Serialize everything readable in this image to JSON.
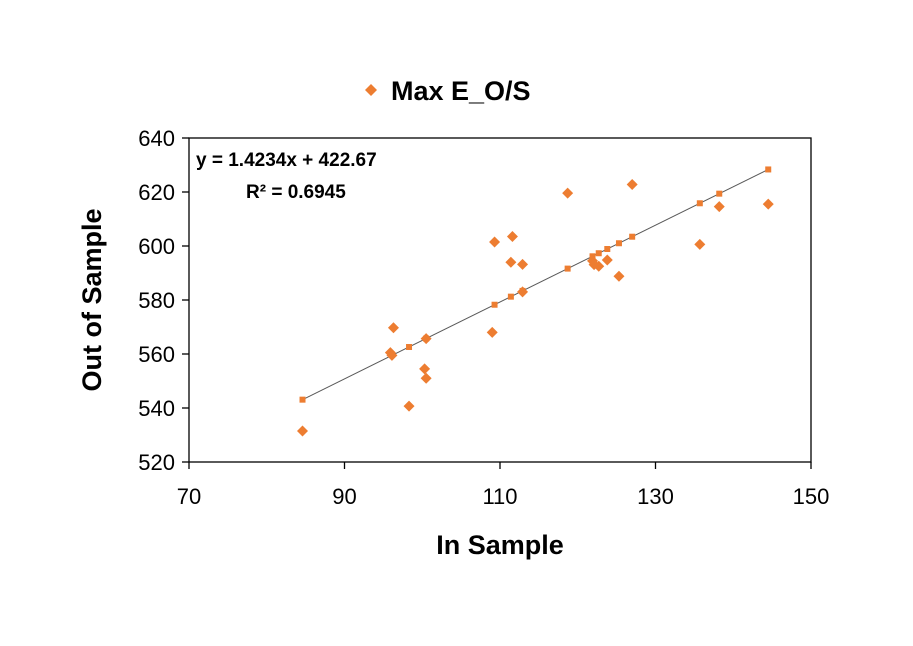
{
  "chart_data": {
    "type": "scatter",
    "xlabel": "In Sample",
    "ylabel": "Out of Sample",
    "xlim": [
      70,
      150
    ],
    "ylim": [
      520,
      640
    ],
    "xticks": [
      70,
      90,
      110,
      130,
      150
    ],
    "yticks": [
      520,
      540,
      560,
      580,
      600,
      620,
      640
    ],
    "grid": false,
    "legend_position": "top-center",
    "series": [
      {
        "name": "Max E_O/S",
        "color": "#ED7D31",
        "marker": "diamond",
        "points": [
          {
            "x": 84.6,
            "y": 531.5
          },
          {
            "x": 95.9,
            "y": 560.5
          },
          {
            "x": 96.1,
            "y": 559.5
          },
          {
            "x": 96.3,
            "y": 569.7
          },
          {
            "x": 98.3,
            "y": 540.7
          },
          {
            "x": 100.3,
            "y": 554.5
          },
          {
            "x": 100.5,
            "y": 551.0
          },
          {
            "x": 100.5,
            "y": 565.7
          },
          {
            "x": 109.0,
            "y": 568.0
          },
          {
            "x": 109.3,
            "y": 601.5
          },
          {
            "x": 111.4,
            "y": 594.0
          },
          {
            "x": 111.6,
            "y": 603.5
          },
          {
            "x": 112.9,
            "y": 583.0
          },
          {
            "x": 112.9,
            "y": 593.2
          },
          {
            "x": 118.7,
            "y": 619.6
          },
          {
            "x": 121.9,
            "y": 594.5
          },
          {
            "x": 122.1,
            "y": 593.1
          },
          {
            "x": 122.7,
            "y": 592.5
          },
          {
            "x": 123.8,
            "y": 594.8
          },
          {
            "x": 125.3,
            "y": 588.8
          },
          {
            "x": 127.0,
            "y": 622.8
          },
          {
            "x": 135.7,
            "y": 600.6
          },
          {
            "x": 138.2,
            "y": 614.6
          },
          {
            "x": 144.5,
            "y": 615.5
          }
        ]
      }
    ],
    "trendline": {
      "type": "linear",
      "slope": 1.4234,
      "intercept": 422.67,
      "color": "#595959",
      "x_points": [
        84.6,
        98.3,
        100.5,
        109.3,
        111.4,
        112.9,
        118.7,
        121.9,
        122.7,
        123.8,
        125.3,
        127.0,
        135.7,
        138.2,
        144.5
      ],
      "marker_color": "#ED7D31"
    },
    "annotations": {
      "equation": "y = 1.4234x + 422.67",
      "r_squared": "R² = 0.6945"
    }
  }
}
